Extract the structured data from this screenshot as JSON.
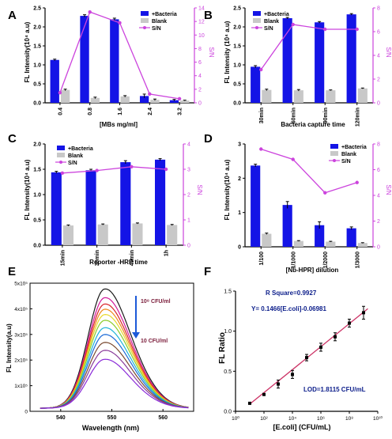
{
  "figure": {
    "panel_letters": [
      "A",
      "B",
      "C",
      "D",
      "E",
      "F"
    ]
  },
  "chart_data": [
    {
      "panel": "A",
      "type": "bar",
      "xlabel": "[MBs mg/ml]",
      "ylabel": "FL Intensity(10⁴ a.u)",
      "y2label": "S/N",
      "categories": [
        "0.4",
        "0.8",
        "1.6",
        "2.4",
        "3.2"
      ],
      "ylim": [
        0,
        2.5
      ],
      "yticks": [
        "0.0",
        "0.5",
        "1.0",
        "1.5",
        "2.0",
        "2.5"
      ],
      "y2lim": [
        0,
        14
      ],
      "y2ticks": [
        "0",
        "2",
        "4",
        "6",
        "8",
        "10",
        "12",
        "14"
      ],
      "series": [
        {
          "name": "+Bacteria",
          "values": [
            1.13,
            2.29,
            2.2,
            0.18,
            0.07
          ],
          "errors": [
            0.02,
            0.03,
            0.03,
            0.05,
            0.02
          ]
        },
        {
          "name": "Blank",
          "values": [
            0.34,
            0.13,
            0.17,
            0.08,
            0.06
          ],
          "errors": [
            0.02,
            0.02,
            0.02,
            0.02,
            0.01
          ]
        },
        {
          "name": "S/N",
          "axis": "right",
          "values": [
            1.5,
            13.4,
            11.8,
            1.3,
            0.6
          ]
        }
      ],
      "legend": "top-right",
      "colors": {
        "bacteria": "#1414e6",
        "blank": "#c8c8c8",
        "sn": "#cc44dd"
      }
    },
    {
      "panel": "B",
      "type": "bar",
      "xlabel": "Bacteria capture time",
      "ylabel": "FL Intensity (10⁴ a.u)",
      "y2label": "S/N",
      "categories": [
        "30min",
        "60min",
        "90min",
        "120min"
      ],
      "ylim": [
        0,
        2.5
      ],
      "yticks": [
        "0.0",
        "0.5",
        "1.0",
        "1.5",
        "2.0",
        "2.5"
      ],
      "y2lim": [
        0,
        8
      ],
      "y2ticks": [
        "0",
        "2",
        "4",
        "6",
        "8"
      ],
      "series": [
        {
          "name": "+Bacteria",
          "values": [
            0.95,
            2.23,
            2.12,
            2.33
          ],
          "errors": [
            0.03,
            0.02,
            0.02,
            0.02
          ]
        },
        {
          "name": "Blank",
          "values": [
            0.34,
            0.33,
            0.33,
            0.38
          ],
          "errors": [
            0.02,
            0.02,
            0.01,
            0.01
          ]
        },
        {
          "name": "S/N",
          "axis": "right",
          "values": [
            2.8,
            6.6,
            6.2,
            6.2
          ]
        }
      ],
      "legend": "top-left"
    },
    {
      "panel": "C",
      "type": "bar",
      "xlabel": "Reporter -HRP time",
      "ylabel": "FL Intensity(10⁴ a.u)",
      "y2label": "S/N",
      "categories": [
        "15min",
        "30min",
        "45min",
        "1h"
      ],
      "ylim": [
        0,
        2.0
      ],
      "yticks": [
        "0.0",
        "0.5",
        "1.0",
        "1.5",
        "2.0"
      ],
      "y2lim": [
        0,
        4
      ],
      "y2ticks": [
        "0",
        "1",
        "2",
        "3",
        "4"
      ],
      "series": [
        {
          "name": "+Bacteria",
          "values": [
            1.44,
            1.48,
            1.64,
            1.69
          ],
          "errors": [
            0.02,
            0.02,
            0.03,
            0.02
          ]
        },
        {
          "name": "Blank",
          "values": [
            0.39,
            0.41,
            0.43,
            0.4
          ],
          "errors": [
            0.01,
            0.01,
            0.01,
            0.01
          ]
        },
        {
          "name": "S/N",
          "axis": "right",
          "values": [
            2.85,
            2.95,
            3.1,
            3.0
          ]
        }
      ],
      "legend": "top-left"
    },
    {
      "panel": "D",
      "type": "bar",
      "xlabel": "[Nb-HPR] dilution",
      "ylabel": "FL Intensity(10⁴ a.u)",
      "y2label": "S/N",
      "categories": [
        "1/100",
        "1/1000",
        "1/2000",
        "1/3000"
      ],
      "ylim": [
        0,
        3
      ],
      "yticks": [
        "0",
        "1",
        "2",
        "3"
      ],
      "y2lim": [
        0,
        8
      ],
      "y2ticks": [
        "0",
        "2",
        "4",
        "6",
        "8"
      ],
      "series": [
        {
          "name": "+Bacteria",
          "values": [
            2.37,
            1.22,
            0.63,
            0.54
          ],
          "errors": [
            0.04,
            0.1,
            0.1,
            0.04
          ]
        },
        {
          "name": "Blank",
          "values": [
            0.38,
            0.17,
            0.15,
            0.11
          ],
          "errors": [
            0.02,
            0.01,
            0.01,
            0.01
          ]
        },
        {
          "name": "S/N",
          "axis": "right",
          "values": [
            7.6,
            6.8,
            4.2,
            5.0
          ]
        }
      ],
      "legend": "top-right"
    },
    {
      "panel": "E",
      "type": "line",
      "xlabel": "Wavelength (nm)",
      "ylabel": "FL Intensity(a.u)",
      "xlim": [
        534,
        566
      ],
      "xticks": [
        "540",
        "550",
        "560"
      ],
      "ylim": [
        0,
        500000
      ],
      "yticks": [
        "0",
        "1x10⁵",
        "2x10⁵",
        "3x10⁵",
        "4x10⁵",
        "5x10⁵"
      ],
      "peak_x": 548.5,
      "annotations": [
        "10⁸ CFU/ml",
        "10 CFU/ml"
      ],
      "series": [
        {
          "peak": 465000,
          "color": "#1a1a1a"
        },
        {
          "peak": 432000,
          "color": "#d0199a"
        },
        {
          "peak": 408000,
          "color": "#d8242a"
        },
        {
          "peak": 388000,
          "color": "#f08a1c"
        },
        {
          "peak": 368000,
          "color": "#e8d82a"
        },
        {
          "peak": 346000,
          "color": "#8ccc2a"
        },
        {
          "peak": 318000,
          "color": "#1fb4d8"
        },
        {
          "peak": 292000,
          "color": "#1c6ad8"
        },
        {
          "peak": 262000,
          "color": "#7a4a30"
        },
        {
          "peak": 232000,
          "color": "#8a3d9a"
        },
        {
          "peak": 198000,
          "color": "#8a2ad8"
        }
      ],
      "baseline": 12000
    },
    {
      "panel": "F",
      "type": "scatter",
      "xlabel": "[E.coli] (CFU/mL)",
      "ylabel": "FL Ratio",
      "xscale": "log",
      "xlim": [
        1,
        10000000000
      ],
      "xticks": [
        "10⁰",
        "10²",
        "10⁴",
        "10⁶",
        "10⁸",
        "10¹⁰"
      ],
      "ylim": [
        0.0,
        1.5
      ],
      "yticks": [
        "0.0",
        "0.5",
        "1.0",
        "1.5"
      ],
      "points": [
        {
          "x": 10,
          "y": 0.1,
          "err": 0.01
        },
        {
          "x": 100,
          "y": 0.21,
          "err": 0.01
        },
        {
          "x": 1000,
          "y": 0.34,
          "err": 0.05
        },
        {
          "x": 10000,
          "y": 0.46,
          "err": 0.05
        },
        {
          "x": 100000,
          "y": 0.67,
          "err": 0.04
        },
        {
          "x": 1000000,
          "y": 0.8,
          "err": 0.05
        },
        {
          "x": 10000000,
          "y": 0.93,
          "err": 0.05
        },
        {
          "x": 100000000,
          "y": 1.1,
          "err": 0.05
        },
        {
          "x": 1000000000,
          "y": 1.23,
          "err": 0.08
        }
      ],
      "fit": {
        "slope": 0.1466,
        "intercept": -0.06981
      },
      "annotations": {
        "r_square": "R Square=0.9927",
        "equation": "Y= 0.1466[E.coli]-0.06981",
        "lod": "LOD=1.8115 CFU/mL"
      },
      "colors": {
        "fit": "#cc3366",
        "text": "#0b1d8a"
      }
    }
  ]
}
